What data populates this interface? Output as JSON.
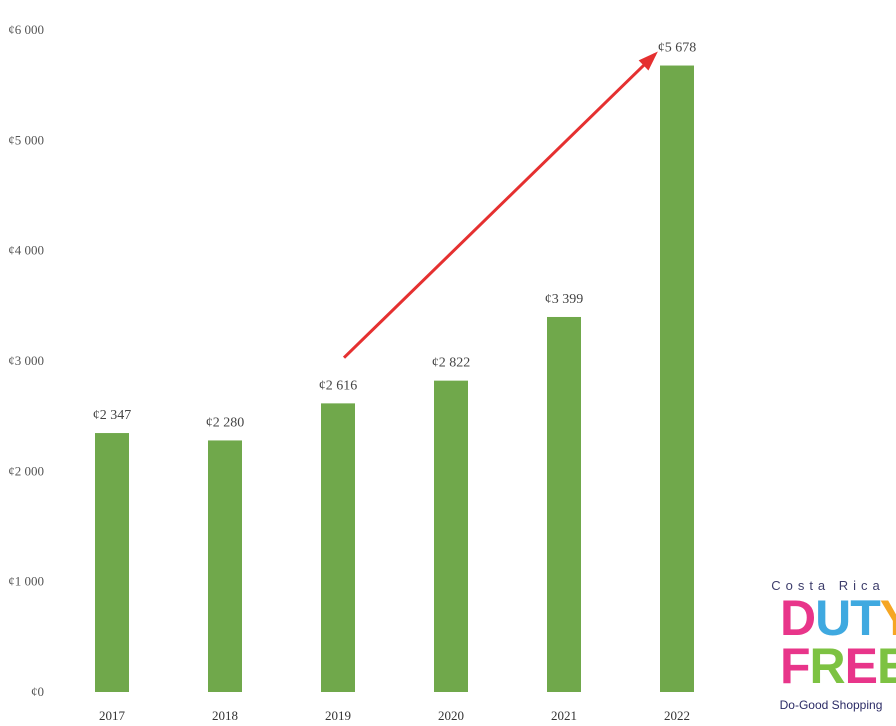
{
  "chart_data": {
    "type": "bar",
    "categories": [
      "2017",
      "2018",
      "2019",
      "2020",
      "2021",
      "2022"
    ],
    "values": [
      2347,
      2280,
      2616,
      2822,
      3399,
      5678
    ],
    "data_labels": [
      "¢2 347",
      "¢2 280",
      "¢2 616",
      "¢2 822",
      "¢3 399",
      "¢5 678"
    ],
    "ylim": [
      0,
      6000
    ],
    "yticks": [
      0,
      1000,
      2000,
      3000,
      4000,
      5000,
      6000
    ],
    "ytick_labels": [
      "¢0",
      "¢1 000",
      "¢2 000",
      "¢3 000",
      "¢4 000",
      "¢5 000",
      "¢6 000"
    ],
    "title": "",
    "xlabel": "",
    "ylabel": "",
    "grid": false,
    "bar_color": "#70a84b",
    "annotations": [
      {
        "type": "arrow",
        "color": "#e53030",
        "from": {
          "category": "2019",
          "value": 3030
        },
        "to": {
          "category": "2022",
          "value": 5780
        }
      }
    ]
  },
  "logo": {
    "top_text": "Costa Rica",
    "duty_letters": [
      {
        "char": "D",
        "color": "#e8358a"
      },
      {
        "char": "U",
        "color": "#3fa9e0"
      },
      {
        "char": "T",
        "color": "#3fa9e0"
      },
      {
        "char": "Y",
        "color": "#f5a623"
      }
    ],
    "free_letters": [
      {
        "char": "F",
        "color": "#e8358a"
      },
      {
        "char": "R",
        "color": "#7dc242"
      },
      {
        "char": "E",
        "color": "#e8358a"
      },
      {
        "char": "E",
        "color": "#7dc242"
      }
    ],
    "tagline": "Do-Good Shopping"
  }
}
